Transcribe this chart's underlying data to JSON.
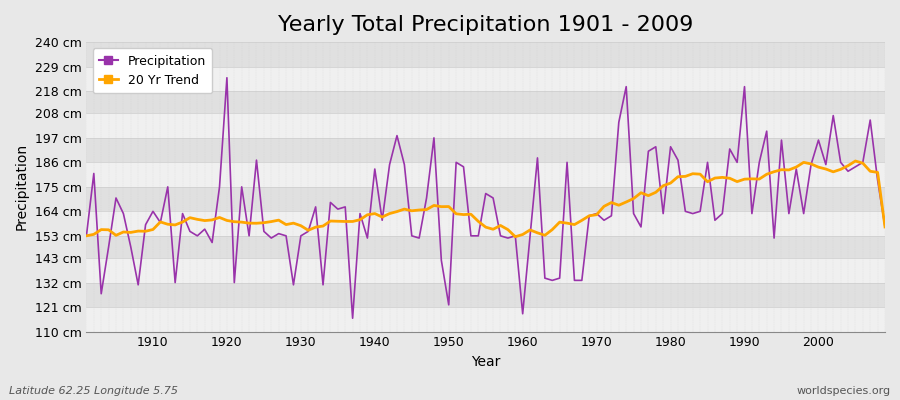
{
  "title": "Yearly Total Precipitation 1901 - 2009",
  "xlabel": "Year",
  "ylabel": "Precipitation",
  "footer_left": "Latitude 62.25 Longitude 5.75",
  "footer_right": "worldspecies.org",
  "years": [
    1901,
    1902,
    1903,
    1904,
    1905,
    1906,
    1907,
    1908,
    1909,
    1910,
    1911,
    1912,
    1913,
    1914,
    1915,
    1916,
    1917,
    1918,
    1919,
    1920,
    1921,
    1922,
    1923,
    1924,
    1925,
    1926,
    1927,
    1928,
    1929,
    1930,
    1931,
    1932,
    1933,
    1934,
    1935,
    1936,
    1937,
    1938,
    1939,
    1940,
    1941,
    1942,
    1943,
    1944,
    1945,
    1946,
    1947,
    1948,
    1949,
    1950,
    1951,
    1952,
    1953,
    1954,
    1955,
    1956,
    1957,
    1958,
    1959,
    1960,
    1961,
    1962,
    1963,
    1964,
    1965,
    1966,
    1967,
    1968,
    1969,
    1970,
    1971,
    1972,
    1973,
    1974,
    1975,
    1976,
    1977,
    1978,
    1979,
    1980,
    1981,
    1982,
    1983,
    1984,
    1985,
    1986,
    1987,
    1988,
    1989,
    1990,
    1991,
    1992,
    1993,
    1994,
    1995,
    1996,
    1997,
    1998,
    1999,
    2000,
    2001,
    2002,
    2003,
    2004,
    2005,
    2006,
    2007,
    2008,
    2009
  ],
  "precipitation": [
    153,
    181,
    127,
    148,
    170,
    163,
    148,
    131,
    158,
    164,
    159,
    175,
    132,
    163,
    155,
    153,
    156,
    150,
    175,
    224,
    132,
    175,
    153,
    187,
    155,
    152,
    154,
    153,
    131,
    153,
    155,
    166,
    131,
    168,
    165,
    166,
    116,
    163,
    152,
    183,
    160,
    185,
    198,
    185,
    153,
    152,
    170,
    197,
    142,
    122,
    186,
    184,
    153,
    153,
    172,
    170,
    153,
    152,
    153,
    118,
    153,
    188,
    134,
    133,
    134,
    186,
    133,
    133,
    162,
    163,
    160,
    162,
    204,
    220,
    163,
    157,
    191,
    193,
    163,
    193,
    187,
    164,
    163,
    164,
    186,
    160,
    163,
    192,
    186,
    220,
    163,
    186,
    200,
    152,
    196,
    163,
    183,
    163,
    185,
    196,
    185,
    207,
    186,
    182,
    184,
    186,
    205,
    178,
    157
  ],
  "precip_color": "#9933AA",
  "trend_color": "#FFA500",
  "bg_color": "#E8E8E8",
  "plot_bg_light": "#F0F0F0",
  "plot_bg_dark": "#E0E0E0",
  "grid_color": "#CCCCCC",
  "ylim_min": 110,
  "ylim_max": 240,
  "ytick_values": [
    110,
    121,
    132,
    143,
    153,
    164,
    175,
    186,
    197,
    208,
    218,
    229,
    240
  ],
  "title_fontsize": 16,
  "label_fontsize": 10,
  "tick_fontsize": 9
}
